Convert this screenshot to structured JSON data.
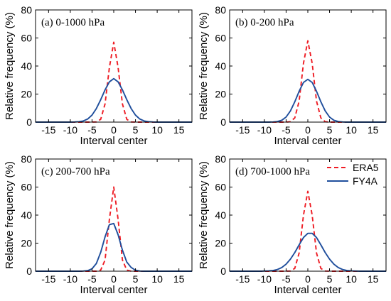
{
  "colors": {
    "era5": "#ee1c24",
    "fy4a": "#1f4e9c",
    "axis": "#000000"
  },
  "chart_data": [
    {
      "type": "line",
      "panel_label": "(a) 0-1000 hPa",
      "xlabel": "Interval center",
      "ylabel": "Relative frequency (%)",
      "xlim": [
        -18,
        18
      ],
      "ylim": [
        0,
        80
      ],
      "xticks": [
        -15,
        -10,
        -5,
        0,
        5,
        10,
        15
      ],
      "yticks": [
        0,
        20,
        40,
        60,
        80
      ],
      "xtick_labels": [
        "-15",
        "-10",
        "-5",
        "0",
        "5",
        "10",
        "15"
      ],
      "ytick_labels": [
        "0",
        "20",
        "40",
        "60",
        "80"
      ],
      "x": [
        -18,
        -17,
        -16,
        -15,
        -14,
        -13,
        -12,
        -11,
        -10,
        -9,
        -8,
        -7,
        -6,
        -5,
        -4,
        -3,
        -2,
        -1,
        0,
        1,
        2,
        3,
        4,
        5,
        6,
        7,
        8,
        9,
        10,
        11,
        12,
        13,
        14,
        15,
        16,
        17,
        18
      ],
      "series": [
        {
          "name": "ERA5",
          "style": "dashed",
          "color": "#ee1c24",
          "values": [
            0,
            0,
            0,
            0,
            0,
            0,
            0,
            0,
            0,
            0,
            0,
            0,
            0,
            0,
            0.1,
            2,
            13,
            39,
            57,
            39,
            13,
            2,
            0.1,
            0,
            0,
            0,
            0,
            0,
            0,
            0,
            0,
            0,
            0,
            0,
            0,
            0,
            0
          ]
        },
        {
          "name": "FY4A",
          "style": "solid",
          "color": "#1f4e9c",
          "values": [
            0,
            0,
            0,
            0,
            0,
            0,
            0,
            0,
            0,
            0.1,
            0.3,
            0.8,
            2.2,
            5,
            9.7,
            16,
            23,
            28.7,
            31,
            28.7,
            23,
            16,
            9.7,
            5,
            2.2,
            0.8,
            0.3,
            0.1,
            0,
            0,
            0,
            0,
            0,
            0,
            0,
            0,
            0
          ]
        }
      ]
    },
    {
      "type": "line",
      "panel_label": "(b) 0-200 hPa",
      "xlabel": "Interval center",
      "ylabel": "Relative frequency (%)",
      "xlim": [
        -18,
        18
      ],
      "ylim": [
        0,
        80
      ],
      "xticks": [
        -15,
        -10,
        -5,
        0,
        5,
        10,
        15
      ],
      "yticks": [
        0,
        20,
        40,
        60,
        80
      ],
      "xtick_labels": [
        "-15",
        "-10",
        "-5",
        "0",
        "5",
        "10",
        "15"
      ],
      "ytick_labels": [
        "0",
        "20",
        "40",
        "60",
        "80"
      ],
      "x": [
        -18,
        -17,
        -16,
        -15,
        -14,
        -13,
        -12,
        -11,
        -10,
        -9,
        -8,
        -7,
        -6,
        -5,
        -4,
        -3,
        -2,
        -1,
        0,
        1,
        2,
        3,
        4,
        5,
        6,
        7,
        8,
        9,
        10,
        11,
        12,
        13,
        14,
        15,
        16,
        17,
        18
      ],
      "series": [
        {
          "name": "ERA5",
          "style": "dashed",
          "color": "#ee1c24",
          "values": [
            0,
            0,
            0,
            0,
            0,
            0,
            0,
            0,
            0,
            0,
            0,
            0,
            0,
            0,
            0.3,
            3,
            15,
            42,
            58,
            42,
            15,
            3,
            0.3,
            0,
            0,
            0,
            0,
            0,
            0,
            0,
            0,
            0,
            0,
            0,
            0,
            0,
            0
          ]
        },
        {
          "name": "FY4A",
          "style": "solid",
          "color": "#1f4e9c",
          "values": [
            0,
            0,
            0,
            0,
            0,
            0,
            0,
            0,
            0,
            0,
            0.1,
            0.4,
            1.3,
            3.6,
            8,
            14.5,
            22,
            28.3,
            30.5,
            28.3,
            22,
            14.5,
            8,
            3.6,
            1.3,
            0.4,
            0.1,
            0,
            0,
            0,
            0,
            0,
            0,
            0,
            0,
            0,
            0
          ]
        }
      ]
    },
    {
      "type": "line",
      "panel_label": "(c) 200-700 hPa",
      "xlabel": "Interval center",
      "ylabel": "Relative frequency (%)",
      "xlim": [
        -18,
        18
      ],
      "ylim": [
        0,
        80
      ],
      "xticks": [
        -15,
        -10,
        -5,
        0,
        5,
        10,
        15
      ],
      "yticks": [
        0,
        20,
        40,
        60,
        80
      ],
      "xtick_labels": [
        "-15",
        "-10",
        "-5",
        "0",
        "5",
        "10",
        "15"
      ],
      "ytick_labels": [
        "0",
        "20",
        "40",
        "60",
        "80"
      ],
      "x": [
        -18,
        -17,
        -16,
        -15,
        -14,
        -13,
        -12,
        -11,
        -10,
        -9,
        -8,
        -7,
        -6,
        -5,
        -4,
        -3,
        -2,
        -1,
        0,
        1,
        2,
        3,
        4,
        5,
        6,
        7,
        8,
        9,
        10,
        11,
        12,
        13,
        14,
        15,
        16,
        17,
        18
      ],
      "series": [
        {
          "name": "ERA5",
          "style": "dashed",
          "color": "#ee1c24",
          "values": [
            0,
            0,
            0,
            0,
            0,
            0,
            0,
            0,
            0,
            0,
            0,
            0,
            0,
            0,
            0,
            0.8,
            8,
            37,
            60,
            37,
            8,
            0.8,
            0,
            0,
            0,
            0,
            0,
            0,
            0,
            0,
            0,
            0,
            0,
            0,
            0,
            0,
            0
          ]
        },
        {
          "name": "FY4A",
          "style": "solid",
          "color": "#1f4e9c",
          "values": [
            0,
            0,
            0,
            0,
            0,
            0,
            0,
            0,
            0,
            0,
            0,
            0.1,
            0.4,
            1.7,
            5.5,
            13.5,
            24.5,
            33.2,
            34,
            26,
            15,
            6.5,
            2.7,
            0.7,
            0.1,
            0,
            0,
            0,
            0,
            0,
            0,
            0,
            0,
            0,
            0,
            0,
            0
          ]
        }
      ]
    },
    {
      "type": "line",
      "panel_label": "(d) 700-1000 hPa",
      "xlabel": "Interval center",
      "ylabel": "Relative frequency (%)",
      "xlim": [
        -18,
        18
      ],
      "ylim": [
        0,
        80
      ],
      "xticks": [
        -15,
        -10,
        -5,
        0,
        5,
        10,
        15
      ],
      "yticks": [
        0,
        20,
        40,
        60,
        80
      ],
      "xtick_labels": [
        "-15",
        "-10",
        "-5",
        "0",
        "5",
        "10",
        "15"
      ],
      "ytick_labels": [
        "0",
        "20",
        "40",
        "60",
        "80"
      ],
      "legend": {
        "position": "top-right",
        "entries": [
          "ERA5",
          "FY4A"
        ]
      },
      "x": [
        -18,
        -17,
        -16,
        -15,
        -14,
        -13,
        -12,
        -11,
        -10,
        -9,
        -8,
        -7,
        -6,
        -5,
        -4,
        -3,
        -2,
        -1,
        0,
        1,
        2,
        3,
        4,
        5,
        6,
        7,
        8,
        9,
        10,
        11,
        12,
        13,
        14,
        15,
        16,
        17,
        18
      ],
      "series": [
        {
          "name": "ERA5",
          "style": "dashed",
          "color": "#ee1c24",
          "values": [
            0,
            0,
            0,
            0,
            0,
            0,
            0,
            0,
            0,
            0,
            0,
            0,
            0,
            0,
            0.1,
            2,
            13,
            40,
            57,
            40,
            13,
            2,
            0.1,
            0,
            0,
            0,
            0,
            0,
            0,
            0,
            0,
            0,
            0,
            0,
            0,
            0,
            0
          ]
        },
        {
          "name": "FY4A",
          "style": "solid",
          "color": "#1f4e9c",
          "values": [
            0,
            0,
            0,
            0,
            0,
            0,
            0,
            0,
            0.1,
            0.2,
            0.5,
            1.2,
            2.6,
            5,
            8.6,
            13.3,
            18.8,
            24,
            27,
            27,
            24,
            18.8,
            13.3,
            8.6,
            5,
            2.6,
            1.2,
            0.5,
            0.2,
            0.1,
            0,
            0,
            0,
            0,
            0,
            0,
            0
          ]
        }
      ]
    }
  ]
}
